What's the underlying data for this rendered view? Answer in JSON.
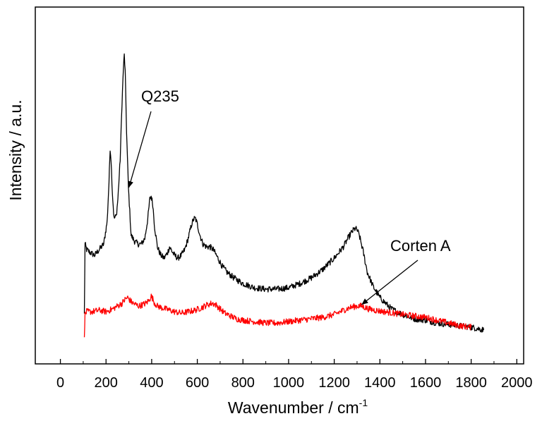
{
  "chart_data": {
    "type": "line",
    "title": "",
    "xlabel": "Wavenumber / cm",
    "xlabel_sup": "-1",
    "ylabel": "Intensity / a.u.",
    "xlim": [
      -110,
      2030
    ],
    "ylim": [
      0,
      1.0
    ],
    "x_ticks": [
      0,
      200,
      400,
      600,
      800,
      1000,
      1200,
      1400,
      1600,
      1800,
      2000
    ],
    "x_tick_labels": [
      "0",
      "200",
      "400",
      "600",
      "800",
      "1000",
      "1200",
      "1400",
      "1600",
      "1800",
      "2000"
    ],
    "y_ticks_visible": false,
    "grid": false,
    "legend": "none",
    "colors": {
      "q235": "#000000",
      "corten": "#ff0000",
      "axis": "#000000"
    },
    "series": [
      {
        "name": "Q235",
        "color": "#000000",
        "x": [
          105,
          108,
          115,
          130,
          150,
          170,
          190,
          205,
          213,
          218,
          222,
          228,
          235,
          245,
          252,
          262,
          270,
          276,
          280,
          284,
          290,
          298,
          310,
          325,
          340,
          355,
          370,
          383,
          392,
          398,
          405,
          413,
          425,
          440,
          455,
          470,
          478,
          485,
          492,
          500,
          515,
          530,
          545,
          560,
          575,
          585,
          592,
          600,
          612,
          625,
          640,
          655,
          670,
          690,
          710,
          730,
          760,
          800,
          850,
          900,
          950,
          1000,
          1050,
          1100,
          1150,
          1200,
          1240,
          1260,
          1275,
          1285,
          1292,
          1300,
          1310,
          1325,
          1345,
          1370,
          1400,
          1450,
          1500,
          1550,
          1600,
          1650,
          1700,
          1750,
          1800,
          1830,
          1855
        ],
        "y": [
          0.05,
          0.3,
          0.28,
          0.27,
          0.26,
          0.28,
          0.3,
          0.38,
          0.52,
          0.64,
          0.6,
          0.48,
          0.39,
          0.4,
          0.46,
          0.6,
          0.8,
          0.92,
          0.97,
          0.91,
          0.7,
          0.5,
          0.33,
          0.31,
          0.3,
          0.3,
          0.32,
          0.39,
          0.46,
          0.47,
          0.44,
          0.36,
          0.29,
          0.26,
          0.25,
          0.27,
          0.29,
          0.28,
          0.27,
          0.26,
          0.25,
          0.26,
          0.28,
          0.32,
          0.37,
          0.39,
          0.39,
          0.37,
          0.33,
          0.3,
          0.29,
          0.29,
          0.28,
          0.25,
          0.22,
          0.2,
          0.18,
          0.16,
          0.145,
          0.14,
          0.14,
          0.145,
          0.16,
          0.18,
          0.21,
          0.25,
          0.29,
          0.32,
          0.34,
          0.35,
          0.355,
          0.35,
          0.33,
          0.28,
          0.2,
          0.15,
          0.11,
          0.07,
          0.05,
          0.035,
          0.03,
          0.02,
          0.015,
          0.01,
          0.005,
          0.0,
          -0.005
        ]
      },
      {
        "name": "Corten A",
        "color": "#ff0000",
        "x": [
          105,
          108,
          115,
          140,
          170,
          200,
          230,
          250,
          270,
          285,
          295,
          305,
          318,
          330,
          345,
          360,
          375,
          388,
          398,
          405,
          413,
          425,
          440,
          460,
          480,
          500,
          530,
          560,
          590,
          620,
          645,
          665,
          680,
          700,
          720,
          745,
          770,
          800,
          850,
          900,
          950,
          1000,
          1050,
          1100,
          1150,
          1200,
          1240,
          1270,
          1300,
          1320,
          1335,
          1350,
          1380,
          1420,
          1460,
          1500,
          1550,
          1600,
          1650,
          1700,
          1750,
          1800
        ],
        "y": [
          -0.02,
          0.05,
          0.06,
          0.06,
          0.065,
          0.06,
          0.07,
          0.08,
          0.09,
          0.105,
          0.11,
          0.1,
          0.09,
          0.085,
          0.08,
          0.085,
          0.09,
          0.1,
          0.115,
          0.105,
          0.09,
          0.08,
          0.075,
          0.07,
          0.065,
          0.06,
          0.055,
          0.06,
          0.065,
          0.075,
          0.085,
          0.09,
          0.085,
          0.07,
          0.055,
          0.045,
          0.035,
          0.03,
          0.025,
          0.02,
          0.02,
          0.025,
          0.03,
          0.035,
          0.04,
          0.05,
          0.065,
          0.075,
          0.08,
          0.08,
          0.075,
          0.07,
          0.065,
          0.06,
          0.055,
          0.05,
          0.045,
          0.04,
          0.03,
          0.02,
          0.01,
          0.005
        ]
      }
    ],
    "annotations": [
      {
        "text": "Q235",
        "series": "Q235",
        "arrow_to": [
          300,
          0.5
        ]
      },
      {
        "text": "Corten A",
        "series": "Corten A",
        "arrow_to": [
          1320,
          0.085
        ]
      }
    ]
  }
}
